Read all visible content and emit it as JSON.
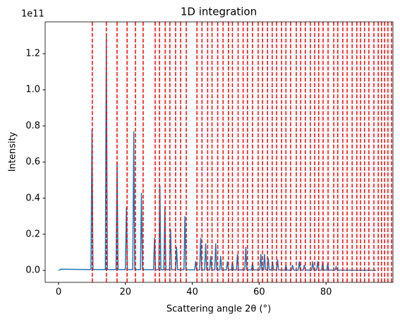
{
  "chart_data": {
    "type": "line",
    "title": "1D integration",
    "x_label": "Scattering angle 2θ (°)",
    "y_label": "Intensity",
    "y_offset_label": "1e11",
    "series": [
      {
        "color": "#1f77b4",
        "x": [
          0,
          0.8,
          1.5,
          9.7,
          10,
          10.3,
          14,
          14.3,
          14.6,
          17.2,
          17.5,
          17.8,
          20,
          20.3,
          20.6,
          22.2,
          22.5,
          22.8,
          24.5,
          24.8,
          25.1,
          28.4,
          28.7,
          29,
          30,
          30.3,
          30.6,
          31.5,
          31.8,
          32.1,
          33.2,
          33.5,
          33.8,
          35,
          35.3,
          35.6,
          37.5,
          37.8,
          38.1,
          40.7,
          41,
          41.3,
          42.2,
          42.5,
          42.8,
          43.7,
          44,
          44.3,
          45.2,
          45.5,
          45.8,
          46.7,
          47,
          47.3,
          48.2,
          48.5,
          48.8,
          50.2,
          50.5,
          50.8,
          51.7,
          52,
          52.3,
          53.2,
          53.5,
          53.8,
          55.7,
          56,
          56.3,
          57.7,
          58,
          58.3,
          60.2,
          60.5,
          60.8,
          61.3,
          61.6,
          61.9,
          62.4,
          62.7,
          63,
          63.7,
          64,
          64.3,
          65.2,
          65.5,
          65.8,
          67.7,
          68,
          68.3,
          69.7,
          70,
          70.3,
          71.7,
          72,
          72.3,
          73.2,
          73.5,
          73.8,
          75.7,
          76,
          76.3,
          77.2,
          77.5,
          77.8,
          78.7,
          79,
          79.3,
          80.2,
          80.5,
          80.8,
          82.7,
          83,
          83.3,
          95
        ],
        "values": [
          0,
          0.007,
          0.007,
          0.005,
          0.78,
          0.005,
          0.005,
          1.31,
          0.005,
          0.005,
          0.6,
          0.005,
          0.005,
          0.35,
          0.005,
          0.005,
          0.77,
          0.005,
          0.005,
          0.43,
          0.005,
          0.004,
          0.18,
          0.004,
          0.004,
          0.47,
          0.004,
          0.004,
          0.35,
          0.004,
          0.004,
          0.23,
          0.004,
          0.004,
          0.13,
          0.004,
          0.004,
          0.3,
          0.004,
          0.003,
          0.05,
          0.003,
          0.003,
          0.18,
          0.003,
          0.003,
          0.15,
          0.003,
          0.003,
          0.08,
          0.003,
          0.003,
          0.15,
          0.003,
          0.003,
          0.08,
          0.003,
          0.003,
          0.05,
          0.003,
          0.003,
          0.05,
          0.003,
          0.003,
          0.09,
          0.003,
          0.003,
          0.13,
          0.003,
          0.003,
          0.04,
          0.003,
          0.003,
          0.09,
          0.003,
          0.003,
          0.09,
          0.003,
          0.003,
          0.07,
          0.003,
          0.003,
          0.05,
          0.003,
          0.003,
          0.06,
          0.003,
          0.002,
          0.03,
          0.002,
          0.002,
          0.03,
          0.002,
          0.002,
          0.05,
          0.002,
          0.002,
          0.03,
          0.002,
          0.002,
          0.05,
          0.002,
          0.002,
          0.05,
          0.002,
          0.002,
          0.05,
          0.002,
          0.002,
          0.04,
          0.002,
          0.002,
          0.02,
          0.002,
          0.001
        ]
      }
    ],
    "vline_color": "#ff0000",
    "vlines": [
      10.1,
      14.3,
      17.5,
      20.5,
      23.0,
      25.3,
      28.9,
      30.2,
      31.9,
      33.3,
      35.0,
      36.5,
      38.2,
      41.4,
      42.9,
      44.6,
      45.9,
      47.6,
      49.2,
      50.8,
      52.0,
      53.7,
      55.2,
      56.5,
      58.0,
      59.7,
      61.0,
      62.5,
      63.9,
      65.2,
      66.7,
      68.0,
      69.4,
      71.1,
      72.4,
      73.8,
      75.3,
      76.6,
      77.8,
      79.1,
      80.6,
      82.3,
      83.5,
      85.0,
      86.3,
      87.8,
      89.2,
      90.3,
      91.5,
      92.8,
      94.3,
      95.6,
      96.6,
      97.5,
      98.5,
      99.6
    ],
    "xlim": [
      -4,
      100
    ],
    "ylim": [
      -0.066,
      1.376
    ],
    "xticks": [
      0,
      20,
      40,
      60,
      80
    ],
    "yticks": [
      {
        "value": 0,
        "label": "0.0"
      },
      {
        "value": 0.2,
        "label": "0.2"
      },
      {
        "value": 0.4,
        "label": "0.4"
      },
      {
        "value": 0.6,
        "label": "0.6"
      },
      {
        "value": 0.8,
        "label": "0.8"
      },
      {
        "value": 1.0,
        "label": "1.0"
      },
      {
        "value": 1.2,
        "label": "1.2"
      }
    ]
  }
}
